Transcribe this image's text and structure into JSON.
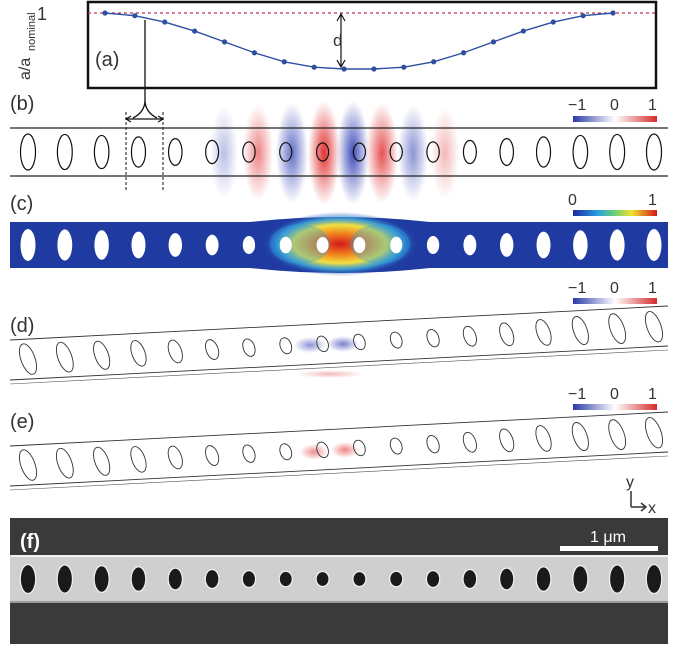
{
  "panels": {
    "a": {
      "label": "(a)",
      "ylabel_main": "a/a",
      "ylabel_sub": "nominal",
      "ytick": "1",
      "depth_label": "d"
    },
    "b": {
      "label": "(b)",
      "scale_min": "−1",
      "scale_mid": "0",
      "scale_max": "1"
    },
    "c": {
      "label": "(c)",
      "scale_min": "0",
      "scale_max": "1"
    },
    "d": {
      "label": "(d)",
      "scale_min": "−1",
      "scale_mid": "0",
      "scale_max": "1"
    },
    "e": {
      "label": "(e)",
      "scale_min": "−1",
      "scale_mid": "0",
      "scale_max": "1"
    },
    "f": {
      "label": "(f)",
      "scalebar_label": "1 μm"
    }
  },
  "axes": {
    "y": "y",
    "x": "x"
  },
  "colors": {
    "curve": "#2e4fa0",
    "nominal_line": "#c0304a",
    "field_pos": "#e23a3a",
    "field_neg": "#3a45b5",
    "strain_bg": "#1f3aa0",
    "sem_bg": "#3a3a3a",
    "sem_beam": "#cfcfcf"
  },
  "chart_data": {
    "type": "line",
    "x": [
      1,
      2,
      3,
      4,
      5,
      6,
      7,
      8,
      9,
      10,
      11,
      12,
      13,
      14,
      15,
      16,
      17,
      18
    ],
    "y": [
      1.0,
      0.985,
      0.95,
      0.9,
      0.84,
      0.78,
      0.73,
      0.7,
      0.69,
      0.69,
      0.7,
      0.73,
      0.78,
      0.84,
      0.9,
      0.95,
      0.985,
      1.0
    ],
    "yticks": [
      "1"
    ],
    "ylabel": "a/a_nominal",
    "nominal": 1
  }
}
